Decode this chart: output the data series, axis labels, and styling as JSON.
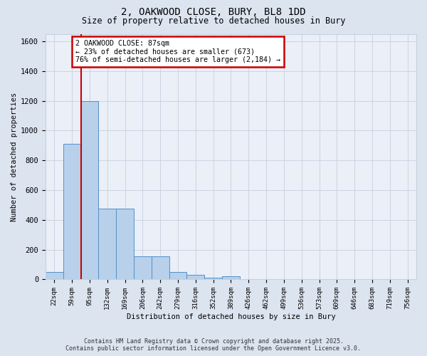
{
  "title_line1": "2, OAKWOOD CLOSE, BURY, BL8 1DD",
  "title_line2": "Size of property relative to detached houses in Bury",
  "xlabel": "Distribution of detached houses by size in Bury",
  "ylabel": "Number of detached properties",
  "bin_labels": [
    "22sqm",
    "59sqm",
    "95sqm",
    "132sqm",
    "169sqm",
    "206sqm",
    "242sqm",
    "279sqm",
    "316sqm",
    "352sqm",
    "389sqm",
    "426sqm",
    "462sqm",
    "499sqm",
    "536sqm",
    "573sqm",
    "609sqm",
    "646sqm",
    "683sqm",
    "719sqm",
    "756sqm"
  ],
  "bar_values": [
    50,
    910,
    1200,
    475,
    475,
    155,
    155,
    50,
    30,
    12,
    20,
    0,
    0,
    0,
    0,
    0,
    0,
    0,
    0,
    0,
    0
  ],
  "bar_color": "#b8d0ea",
  "bar_edge_color": "#5590c8",
  "annotation_text": "2 OAKWOOD CLOSE: 87sqm\n← 23% of detached houses are smaller (673)\n76% of semi-detached houses are larger (2,184) →",
  "annotation_box_color": "#ffffff",
  "annotation_box_edge": "#cc0000",
  "annotation_text_color": "#000000",
  "vline_color": "#cc0000",
  "ylim": [
    0,
    1650
  ],
  "yticks": [
    0,
    200,
    400,
    600,
    800,
    1000,
    1200,
    1400,
    1600
  ],
  "footer_line1": "Contains HM Land Registry data © Crown copyright and database right 2025.",
  "footer_line2": "Contains public sector information licensed under the Open Government Licence v3.0.",
  "bg_color": "#dce4f0",
  "plot_bg_color": "#eaeff8",
  "grid_color": "#c8cfe0"
}
